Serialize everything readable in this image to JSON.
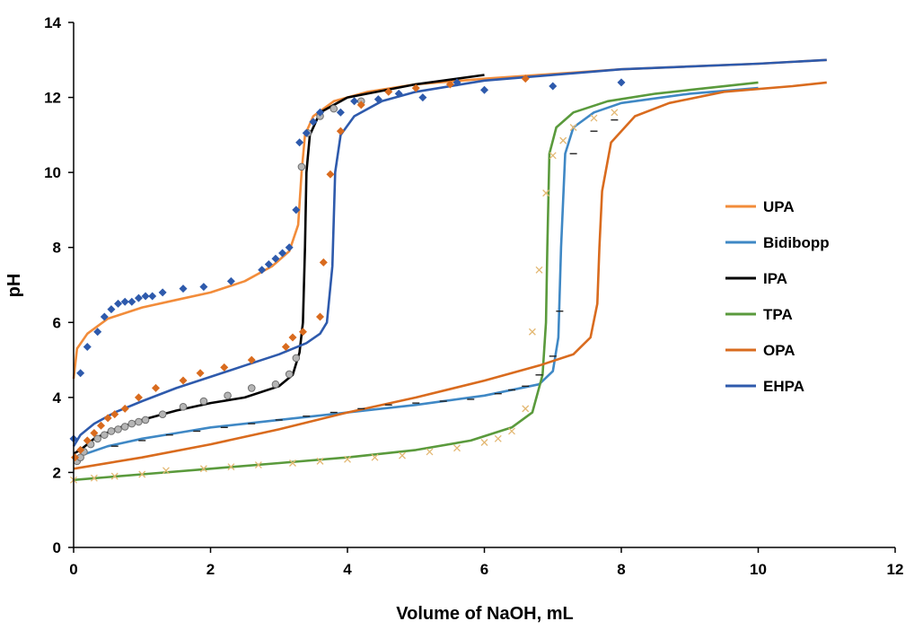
{
  "chart_data": {
    "type": "line",
    "title": "",
    "xlabel": "Volume of NaOH, mL",
    "ylabel": "pH",
    "xlim": [
      0,
      12
    ],
    "ylim": [
      0,
      14
    ],
    "xticks": [
      "0",
      "2",
      "4",
      "6",
      "8",
      "10",
      "12"
    ],
    "yticks": [
      "0",
      "2",
      "4",
      "6",
      "8",
      "10",
      "12",
      "14"
    ],
    "grid": false,
    "legend_position": "right",
    "series": [
      {
        "name": "UPA",
        "color": "#F28C3A",
        "fit": [
          [
            0,
            4.5
          ],
          [
            0.05,
            5.3
          ],
          [
            0.2,
            5.7
          ],
          [
            0.5,
            6.1
          ],
          [
            1,
            6.4
          ],
          [
            1.5,
            6.6
          ],
          [
            2,
            6.8
          ],
          [
            2.5,
            7.1
          ],
          [
            2.9,
            7.5
          ],
          [
            3.15,
            7.9
          ],
          [
            3.28,
            8.6
          ],
          [
            3.33,
            10.0
          ],
          [
            3.38,
            11.0
          ],
          [
            3.5,
            11.5
          ],
          [
            3.8,
            11.9
          ],
          [
            4.3,
            12.15
          ],
          [
            5,
            12.35
          ],
          [
            6,
            12.5
          ],
          [
            8,
            12.75
          ],
          [
            10,
            12.9
          ],
          [
            11,
            13.0
          ]
        ]
      },
      {
        "name": "Bidibopp",
        "color": "#3F88C5",
        "fit": [
          [
            0,
            2.3
          ],
          [
            0.1,
            2.45
          ],
          [
            0.5,
            2.7
          ],
          [
            1,
            2.9
          ],
          [
            1.5,
            3.05
          ],
          [
            2,
            3.2
          ],
          [
            3,
            3.4
          ],
          [
            4,
            3.6
          ],
          [
            5,
            3.8
          ],
          [
            6,
            4.05
          ],
          [
            6.8,
            4.35
          ],
          [
            7.0,
            4.7
          ],
          [
            7.08,
            5.6
          ],
          [
            7.12,
            8.0
          ],
          [
            7.18,
            10.5
          ],
          [
            7.3,
            11.2
          ],
          [
            7.6,
            11.6
          ],
          [
            8,
            11.85
          ],
          [
            9,
            12.1
          ],
          [
            10,
            12.25
          ]
        ],
        "points": [
          [
            0.6,
            2.7
          ],
          [
            1.0,
            2.85
          ],
          [
            1.4,
            3.0
          ],
          [
            1.8,
            3.1
          ],
          [
            2.2,
            3.2
          ],
          [
            2.6,
            3.3
          ],
          [
            3.0,
            3.4
          ],
          [
            3.4,
            3.5
          ],
          [
            3.8,
            3.6
          ],
          [
            4.2,
            3.7
          ],
          [
            4.6,
            3.8
          ],
          [
            5.0,
            3.85
          ],
          [
            5.4,
            3.9
          ],
          [
            5.8,
            3.95
          ],
          [
            6.2,
            4.1
          ],
          [
            6.4,
            4.2
          ],
          [
            6.6,
            4.3
          ],
          [
            6.8,
            4.6
          ],
          [
            7.0,
            5.1
          ],
          [
            7.1,
            6.3
          ],
          [
            7.3,
            10.5
          ],
          [
            7.6,
            11.1
          ],
          [
            7.9,
            11.4
          ]
        ]
      },
      {
        "name": "IPA",
        "color": "#000000",
        "fit": [
          [
            0,
            2.5
          ],
          [
            0.1,
            2.6
          ],
          [
            0.3,
            2.9
          ],
          [
            0.6,
            3.15
          ],
          [
            1,
            3.4
          ],
          [
            1.5,
            3.65
          ],
          [
            2,
            3.85
          ],
          [
            2.5,
            4.0
          ],
          [
            3,
            4.3
          ],
          [
            3.2,
            4.6
          ],
          [
            3.3,
            5.2
          ],
          [
            3.35,
            6.0
          ],
          [
            3.38,
            8.0
          ],
          [
            3.4,
            10.0
          ],
          [
            3.45,
            11.0
          ],
          [
            3.6,
            11.6
          ],
          [
            4,
            12.0
          ],
          [
            5,
            12.35
          ],
          [
            6,
            12.6
          ]
        ],
        "points": [
          [
            0.05,
            2.3
          ],
          [
            0.1,
            2.4
          ],
          [
            0.15,
            2.55
          ],
          [
            0.25,
            2.75
          ],
          [
            0.35,
            2.9
          ],
          [
            0.45,
            3.0
          ],
          [
            0.55,
            3.1
          ],
          [
            0.65,
            3.15
          ],
          [
            0.75,
            3.22
          ],
          [
            0.85,
            3.3
          ],
          [
            0.95,
            3.35
          ],
          [
            1.05,
            3.4
          ],
          [
            1.3,
            3.55
          ],
          [
            1.6,
            3.75
          ],
          [
            1.9,
            3.9
          ],
          [
            2.25,
            4.05
          ],
          [
            2.6,
            4.25
          ],
          [
            2.95,
            4.35
          ],
          [
            3.15,
            4.62
          ],
          [
            3.25,
            5.05
          ],
          [
            3.33,
            10.15
          ],
          [
            3.42,
            11.05
          ],
          [
            3.6,
            11.5
          ],
          [
            3.8,
            11.7
          ],
          [
            4.2,
            11.9
          ]
        ]
      },
      {
        "name": "TPA",
        "color": "#5A9A3C",
        "fit": [
          [
            0,
            1.8
          ],
          [
            1,
            1.95
          ],
          [
            2,
            2.1
          ],
          [
            3,
            2.25
          ],
          [
            4,
            2.4
          ],
          [
            5,
            2.6
          ],
          [
            5.8,
            2.85
          ],
          [
            6.4,
            3.2
          ],
          [
            6.7,
            3.6
          ],
          [
            6.85,
            4.6
          ],
          [
            6.9,
            6.0
          ],
          [
            6.92,
            8.0
          ],
          [
            6.95,
            10.5
          ],
          [
            7.05,
            11.2
          ],
          [
            7.3,
            11.6
          ],
          [
            7.8,
            11.9
          ],
          [
            8.5,
            12.1
          ],
          [
            9,
            12.2
          ],
          [
            10,
            12.4
          ]
        ],
        "points": [
          [
            0.0,
            1.8
          ],
          [
            0.3,
            1.85
          ],
          [
            0.6,
            1.9
          ],
          [
            1.0,
            1.95
          ],
          [
            1.35,
            2.05
          ],
          [
            1.9,
            2.1
          ],
          [
            2.3,
            2.15
          ],
          [
            2.7,
            2.2
          ],
          [
            3.2,
            2.25
          ],
          [
            3.6,
            2.3
          ],
          [
            4.0,
            2.35
          ],
          [
            4.4,
            2.4
          ],
          [
            4.8,
            2.45
          ],
          [
            5.2,
            2.55
          ],
          [
            5.6,
            2.65
          ],
          [
            6.0,
            2.8
          ],
          [
            6.2,
            2.9
          ],
          [
            6.4,
            3.1
          ],
          [
            6.6,
            3.7
          ],
          [
            6.7,
            5.75
          ],
          [
            6.8,
            7.4
          ],
          [
            6.9,
            9.45
          ],
          [
            7.0,
            10.45
          ],
          [
            7.15,
            10.85
          ],
          [
            7.3,
            11.2
          ],
          [
            7.6,
            11.45
          ],
          [
            7.9,
            11.6
          ]
        ]
      },
      {
        "name": "OPA",
        "color": "#D96B1E",
        "fit": [
          [
            0,
            2.1
          ],
          [
            1,
            2.4
          ],
          [
            2,
            2.75
          ],
          [
            3,
            3.15
          ],
          [
            4,
            3.6
          ],
          [
            5,
            4.0
          ],
          [
            6,
            4.45
          ],
          [
            6.8,
            4.85
          ],
          [
            7.3,
            5.15
          ],
          [
            7.55,
            5.6
          ],
          [
            7.65,
            6.5
          ],
          [
            7.68,
            8.0
          ],
          [
            7.72,
            9.5
          ],
          [
            7.85,
            10.8
          ],
          [
            8.2,
            11.5
          ],
          [
            8.7,
            11.85
          ],
          [
            9.5,
            12.15
          ],
          [
            10.5,
            12.3
          ],
          [
            11,
            12.4
          ]
        ],
        "points": [
          [
            0.02,
            2.4
          ],
          [
            0.1,
            2.6
          ],
          [
            0.2,
            2.85
          ],
          [
            0.3,
            3.05
          ],
          [
            0.4,
            3.25
          ],
          [
            0.5,
            3.45
          ],
          [
            0.6,
            3.55
          ],
          [
            0.75,
            3.7
          ],
          [
            0.95,
            4.0
          ],
          [
            1.2,
            4.25
          ],
          [
            1.6,
            4.45
          ],
          [
            1.85,
            4.65
          ],
          [
            2.2,
            4.8
          ],
          [
            2.6,
            5.0
          ],
          [
            3.1,
            5.35
          ],
          [
            3.2,
            5.6
          ],
          [
            3.35,
            5.75
          ],
          [
            3.6,
            6.15
          ],
          [
            3.65,
            7.6
          ],
          [
            3.75,
            9.95
          ],
          [
            3.9,
            11.1
          ],
          [
            4.2,
            11.8
          ],
          [
            4.6,
            12.15
          ],
          [
            5.0,
            12.25
          ],
          [
            5.5,
            12.35
          ],
          [
            6.6,
            12.5
          ]
        ]
      },
      {
        "name": "EHPA",
        "color": "#2E5AAC",
        "fit": [
          [
            0,
            2.7
          ],
          [
            0.1,
            3.0
          ],
          [
            0.3,
            3.3
          ],
          [
            0.6,
            3.6
          ],
          [
            1,
            3.9
          ],
          [
            1.5,
            4.25
          ],
          [
            2,
            4.55
          ],
          [
            2.5,
            4.85
          ],
          [
            3,
            5.15
          ],
          [
            3.4,
            5.45
          ],
          [
            3.6,
            5.7
          ],
          [
            3.7,
            6.0
          ],
          [
            3.78,
            7.5
          ],
          [
            3.82,
            10.0
          ],
          [
            3.9,
            11.0
          ],
          [
            4.1,
            11.5
          ],
          [
            4.5,
            11.9
          ],
          [
            5,
            12.15
          ],
          [
            6,
            12.45
          ],
          [
            8,
            12.75
          ],
          [
            10,
            12.9
          ],
          [
            11,
            13.0
          ]
        ],
        "points": [
          [
            0.0,
            2.9
          ],
          [
            0.1,
            4.65
          ],
          [
            0.2,
            5.35
          ],
          [
            0.35,
            5.75
          ],
          [
            0.45,
            6.15
          ],
          [
            0.55,
            6.35
          ],
          [
            0.65,
            6.5
          ],
          [
            0.75,
            6.55
          ],
          [
            0.85,
            6.55
          ],
          [
            0.95,
            6.65
          ],
          [
            1.05,
            6.7
          ],
          [
            1.15,
            6.7
          ],
          [
            1.3,
            6.8
          ],
          [
            1.6,
            6.9
          ],
          [
            1.9,
            6.95
          ],
          [
            2.3,
            7.1
          ],
          [
            2.75,
            7.4
          ],
          [
            2.85,
            7.55
          ],
          [
            2.95,
            7.7
          ],
          [
            3.05,
            7.85
          ],
          [
            3.15,
            8.0
          ],
          [
            3.25,
            9.0
          ],
          [
            3.3,
            10.8
          ],
          [
            3.4,
            11.05
          ],
          [
            3.5,
            11.35
          ],
          [
            3.6,
            11.6
          ],
          [
            3.9,
            11.6
          ],
          [
            4.1,
            11.9
          ],
          [
            4.45,
            11.95
          ],
          [
            4.75,
            12.1
          ],
          [
            5.1,
            12.0
          ],
          [
            5.6,
            12.4
          ],
          [
            6.0,
            12.2
          ],
          [
            7.0,
            12.3
          ],
          [
            8.0,
            12.4
          ]
        ]
      }
    ]
  }
}
